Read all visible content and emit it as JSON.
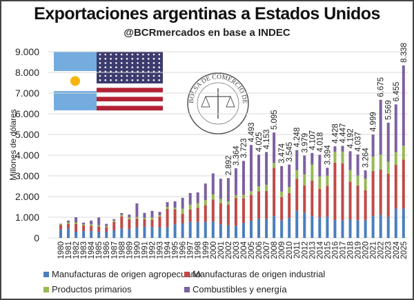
{
  "logo_text": "BOLSA DE COMERCIO DE ROSARIO",
  "chart_data": {
    "type": "bar",
    "stacked": true,
    "title": "Exportaciones argentinas a Estados Unidos",
    "subtitle": "@BCRmercados en base a INDEC",
    "xlabel": "",
    "ylabel": "Millones de dólares",
    "ylim": [
      0,
      9000
    ],
    "yticks": [
      "0",
      "1.000",
      "2.000",
      "3.000",
      "4.000",
      "5.000",
      "6.000",
      "7.000",
      "8.000",
      "9.000"
    ],
    "grid": true,
    "legend_position": "bottom",
    "categories": [
      "1980",
      "1981",
      "1982",
      "1983",
      "1984",
      "1985",
      "1986",
      "1987",
      "1988",
      "1989",
      "1990",
      "1991",
      "1992",
      "1993",
      "1994",
      "1995",
      "1996",
      "1997",
      "1998",
      "1999",
      "2000",
      "2001",
      "2002",
      "2003",
      "2004",
      "2005",
      "2006",
      "2007",
      "2008",
      "2009",
      "2010",
      "2011",
      "2012",
      "2013",
      "2014",
      "2015",
      "2016",
      "2017",
      "2018",
      "2019",
      "2020",
      "2021",
      "2022",
      "2023",
      "2024",
      "2025"
    ],
    "series": [
      {
        "name": "Manufacturas de origen agropecuario",
        "color": "#4a7ebb",
        "values": [
          410,
          460,
          300,
          330,
          330,
          300,
          300,
          370,
          460,
          410,
          500,
          540,
          530,
          500,
          520,
          660,
          700,
          780,
          770,
          770,
          790,
          660,
          610,
          590,
          720,
          830,
          920,
          920,
          1060,
          860,
          970,
          1320,
          1230,
          1060,
          990,
          1030,
          860,
          860,
          900,
          860,
          860,
          1060,
          1120,
          1010,
          1410,
          1410
        ]
      },
      {
        "name": "Manufacturas de origen industrial",
        "color": "#be4b48",
        "values": [
          220,
          220,
          380,
          280,
          260,
          260,
          220,
          400,
          580,
          490,
          440,
          360,
          350,
          530,
          890,
          720,
          470,
          590,
          690,
          820,
          1070,
          1020,
          1000,
          1350,
          1200,
          1250,
          1330,
          1350,
          2330,
          1110,
          1200,
          1530,
          1310,
          1710,
          1380,
          1490,
          2780,
          2750,
          1820,
          1670,
          1440,
          2180,
          2180,
          2090,
          2130,
          2380
        ]
      },
      {
        "name": "Productos primarios",
        "color": "#98b954",
        "values": [
          50,
          70,
          70,
          40,
          70,
          50,
          50,
          70,
          70,
          90,
          70,
          70,
          110,
          70,
          90,
          80,
          240,
          240,
          220,
          240,
          240,
          200,
          160,
          130,
          160,
          180,
          240,
          300,
          240,
          270,
          290,
          420,
          530,
          780,
          600,
          490,
          530,
          560,
          560,
          490,
          560,
          690,
          730,
          580,
          600,
          670
        ]
      },
      {
        "name": "Combustibles y energía",
        "color": "#7d60a0",
        "values": [
          10,
          90,
          250,
          90,
          180,
          380,
          110,
          70,
          90,
          140,
          660,
          240,
          320,
          160,
          230,
          310,
          530,
          560,
          520,
          800,
          1020,
          980,
          1122,
          1294,
          1643,
          2233,
          1535,
          1583,
          1465,
          1234,
          1085,
          978,
          909,
          557,
          1048,
          384,
          258,
          281,
          912,
          1017,
          404,
          1069,
          2645,
          1889,
          2314,
          3878
        ]
      }
    ],
    "data_labels": {
      "2002": "2.892",
      "2003": "3.364",
      "2004": "3.723",
      "2005": "4.493",
      "2006": "4.025",
      "2007": "4.153",
      "2008": "5.095",
      "2009": "3.474",
      "2010": "3.545",
      "2011": "4.248",
      "2012": "3.979",
      "2013": "4.107",
      "2014": "4.018",
      "2015": "3.394",
      "2016": "4.428",
      "2017": "4.447",
      "2018": "4.192",
      "2019": "4.037",
      "2020": "3.264",
      "2021": "4.999",
      "2022": "6.675",
      "2023": "5.569",
      "2024": "6.455",
      "2025": "8.338"
    }
  }
}
